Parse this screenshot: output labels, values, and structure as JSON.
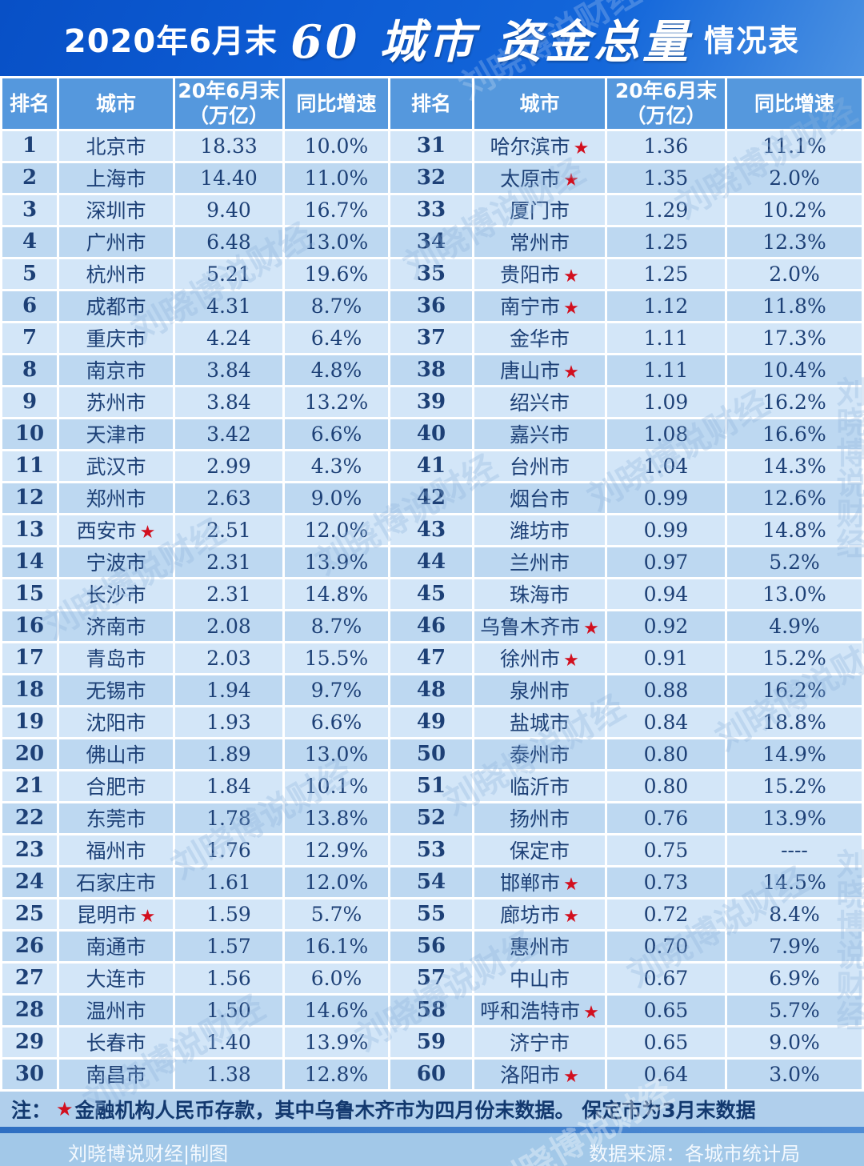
{
  "title": {
    "prefix": "2020年6月末",
    "highlight": "60 城市 资金总量",
    "suffix": "情况表"
  },
  "header_columns": [
    "排名",
    "城市",
    "20年6月末\n（万亿）",
    "同比增速"
  ],
  "star_glyph": "★",
  "watermark": "刘晓博说财经",
  "note": {
    "label": "注：",
    "text": "金融机构人民币存款，其中乌鲁木齐市为四月份末数据。 保定市为3月末数据"
  },
  "footer": {
    "left": "刘晓博说财经|制图",
    "right": "数据来源：各城市统计局"
  },
  "colors": {
    "title_bg": "#0d5cd4",
    "header_bg": "#5598dd",
    "row_odd": "#d3e6f8",
    "row_even": "#bdd8f1",
    "text_navy": "#1d4076",
    "star_red": "#d20f1e",
    "note_bg": "#b0cfec",
    "footer_bg": "#a2c8e8"
  },
  "chart_data": {
    "type": "table",
    "title": "2020年6月末60城市资金总量情况表",
    "columns": [
      "排名",
      "城市",
      "20年6月末（万亿）",
      "同比增速"
    ],
    "rows": [
      {
        "rank": "1",
        "city": "北京市",
        "star": false,
        "value": "18.33",
        "yoy": "10.0%"
      },
      {
        "rank": "2",
        "city": "上海市",
        "star": false,
        "value": "14.40",
        "yoy": "11.0%"
      },
      {
        "rank": "3",
        "city": "深圳市",
        "star": false,
        "value": "9.40",
        "yoy": "16.7%"
      },
      {
        "rank": "4",
        "city": "广州市",
        "star": false,
        "value": "6.48",
        "yoy": "13.0%"
      },
      {
        "rank": "5",
        "city": "杭州市",
        "star": false,
        "value": "5.21",
        "yoy": "19.6%"
      },
      {
        "rank": "6",
        "city": "成都市",
        "star": false,
        "value": "4.31",
        "yoy": "8.7%"
      },
      {
        "rank": "7",
        "city": "重庆市",
        "star": false,
        "value": "4.24",
        "yoy": "6.4%"
      },
      {
        "rank": "8",
        "city": "南京市",
        "star": false,
        "value": "3.84",
        "yoy": "4.8%"
      },
      {
        "rank": "9",
        "city": "苏州市",
        "star": false,
        "value": "3.84",
        "yoy": "13.2%"
      },
      {
        "rank": "10",
        "city": "天津市",
        "star": false,
        "value": "3.42",
        "yoy": "6.6%"
      },
      {
        "rank": "11",
        "city": "武汉市",
        "star": false,
        "value": "2.99",
        "yoy": "4.3%"
      },
      {
        "rank": "12",
        "city": "郑州市",
        "star": false,
        "value": "2.63",
        "yoy": "9.0%"
      },
      {
        "rank": "13",
        "city": "西安市",
        "star": true,
        "value": "2.51",
        "yoy": "12.0%"
      },
      {
        "rank": "14",
        "city": "宁波市",
        "star": false,
        "value": "2.31",
        "yoy": "13.9%"
      },
      {
        "rank": "15",
        "city": "长沙市",
        "star": false,
        "value": "2.31",
        "yoy": "14.8%"
      },
      {
        "rank": "16",
        "city": "济南市",
        "star": false,
        "value": "2.08",
        "yoy": "8.7%"
      },
      {
        "rank": "17",
        "city": "青岛市",
        "star": false,
        "value": "2.03",
        "yoy": "15.5%"
      },
      {
        "rank": "18",
        "city": "无锡市",
        "star": false,
        "value": "1.94",
        "yoy": "9.7%"
      },
      {
        "rank": "19",
        "city": "沈阳市",
        "star": false,
        "value": "1.93",
        "yoy": "6.6%"
      },
      {
        "rank": "20",
        "city": "佛山市",
        "star": false,
        "value": "1.89",
        "yoy": "13.0%"
      },
      {
        "rank": "21",
        "city": "合肥市",
        "star": false,
        "value": "1.84",
        "yoy": "10.1%"
      },
      {
        "rank": "22",
        "city": "东莞市",
        "star": false,
        "value": "1.78",
        "yoy": "13.8%"
      },
      {
        "rank": "23",
        "city": "福州市",
        "star": false,
        "value": "1.76",
        "yoy": "12.9%"
      },
      {
        "rank": "24",
        "city": "石家庄市",
        "star": false,
        "value": "1.61",
        "yoy": "12.0%"
      },
      {
        "rank": "25",
        "city": "昆明市",
        "star": true,
        "value": "1.59",
        "yoy": "5.7%"
      },
      {
        "rank": "26",
        "city": "南通市",
        "star": false,
        "value": "1.57",
        "yoy": "16.1%"
      },
      {
        "rank": "27",
        "city": "大连市",
        "star": false,
        "value": "1.56",
        "yoy": "6.0%"
      },
      {
        "rank": "28",
        "city": "温州市",
        "star": false,
        "value": "1.50",
        "yoy": "14.6%"
      },
      {
        "rank": "29",
        "city": "长春市",
        "star": false,
        "value": "1.40",
        "yoy": "13.9%"
      },
      {
        "rank": "30",
        "city": "南昌市",
        "star": false,
        "value": "1.38",
        "yoy": "12.8%"
      },
      {
        "rank": "31",
        "city": "哈尔滨市",
        "star": true,
        "value": "1.36",
        "yoy": "11.1%"
      },
      {
        "rank": "32",
        "city": "太原市",
        "star": true,
        "value": "1.35",
        "yoy": "2.0%"
      },
      {
        "rank": "33",
        "city": "厦门市",
        "star": false,
        "value": "1.29",
        "yoy": "10.2%"
      },
      {
        "rank": "34",
        "city": "常州市",
        "star": false,
        "value": "1.25",
        "yoy": "12.3%"
      },
      {
        "rank": "35",
        "city": "贵阳市",
        "star": true,
        "value": "1.25",
        "yoy": "2.0%"
      },
      {
        "rank": "36",
        "city": "南宁市",
        "star": true,
        "value": "1.12",
        "yoy": "11.8%"
      },
      {
        "rank": "37",
        "city": "金华市",
        "star": false,
        "value": "1.11",
        "yoy": "17.3%"
      },
      {
        "rank": "38",
        "city": "唐山市",
        "star": true,
        "value": "1.11",
        "yoy": "10.4%"
      },
      {
        "rank": "39",
        "city": "绍兴市",
        "star": false,
        "value": "1.09",
        "yoy": "16.2%"
      },
      {
        "rank": "40",
        "city": "嘉兴市",
        "star": false,
        "value": "1.08",
        "yoy": "16.6%"
      },
      {
        "rank": "41",
        "city": "台州市",
        "star": false,
        "value": "1.04",
        "yoy": "14.3%"
      },
      {
        "rank": "42",
        "city": "烟台市",
        "star": false,
        "value": "0.99",
        "yoy": "12.6%"
      },
      {
        "rank": "43",
        "city": "潍坊市",
        "star": false,
        "value": "0.99",
        "yoy": "14.8%"
      },
      {
        "rank": "44",
        "city": "兰州市",
        "star": false,
        "value": "0.97",
        "yoy": "5.2%"
      },
      {
        "rank": "45",
        "city": "珠海市",
        "star": false,
        "value": "0.94",
        "yoy": "13.0%"
      },
      {
        "rank": "46",
        "city": "乌鲁木齐市",
        "star": true,
        "value": "0.92",
        "yoy": "4.9%"
      },
      {
        "rank": "47",
        "city": "徐州市",
        "star": true,
        "value": "0.91",
        "yoy": "15.2%"
      },
      {
        "rank": "48",
        "city": "泉州市",
        "star": false,
        "value": "0.88",
        "yoy": "16.2%"
      },
      {
        "rank": "49",
        "city": "盐城市",
        "star": false,
        "value": "0.84",
        "yoy": "18.8%"
      },
      {
        "rank": "50",
        "city": "泰州市",
        "star": false,
        "value": "0.80",
        "yoy": "14.9%"
      },
      {
        "rank": "51",
        "city": "临沂市",
        "star": false,
        "value": "0.80",
        "yoy": "15.2%"
      },
      {
        "rank": "52",
        "city": "扬州市",
        "star": false,
        "value": "0.76",
        "yoy": "13.9%"
      },
      {
        "rank": "53",
        "city": "保定市",
        "star": false,
        "value": "0.75",
        "yoy": "----"
      },
      {
        "rank": "54",
        "city": "邯郸市",
        "star": true,
        "value": "0.73",
        "yoy": "14.5%"
      },
      {
        "rank": "55",
        "city": "廊坊市",
        "star": true,
        "value": "0.72",
        "yoy": "8.4%"
      },
      {
        "rank": "56",
        "city": "惠州市",
        "star": false,
        "value": "0.70",
        "yoy": "7.9%"
      },
      {
        "rank": "57",
        "city": "中山市",
        "star": false,
        "value": "0.67",
        "yoy": "6.9%"
      },
      {
        "rank": "58",
        "city": "呼和浩特市",
        "star": true,
        "value": "0.65",
        "yoy": "5.7%"
      },
      {
        "rank": "59",
        "city": "济宁市",
        "star": false,
        "value": "0.65",
        "yoy": "9.0%"
      },
      {
        "rank": "60",
        "city": "洛阳市",
        "star": true,
        "value": "0.64",
        "yoy": "3.0%"
      }
    ]
  }
}
